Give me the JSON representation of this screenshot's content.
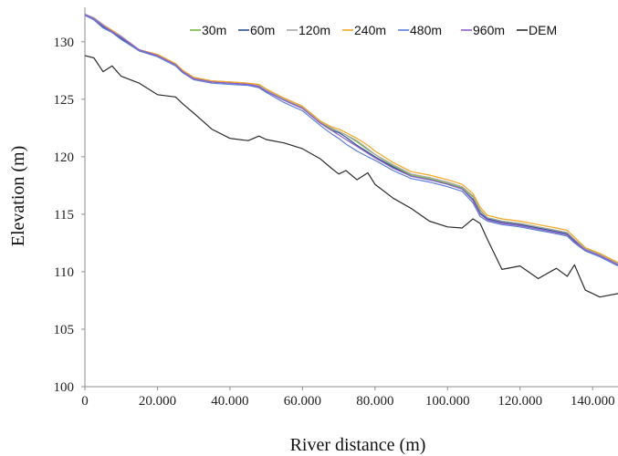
{
  "chart_data": {
    "type": "line",
    "title": "",
    "xlabel": "River distance (m)",
    "ylabel": "Elevation (m)",
    "xlim": [
      0,
      147000
    ],
    "ylim": [
      100,
      133
    ],
    "xticks": [
      0,
      20000,
      40000,
      60000,
      80000,
      100000,
      120000,
      140000
    ],
    "xtick_labels": [
      "0",
      "20.000",
      "40.000",
      "60.000",
      "80.000",
      "100.000",
      "120.000",
      "140.000"
    ],
    "yticks": [
      100,
      105,
      110,
      115,
      120,
      125,
      130
    ],
    "ytick_labels": [
      "100",
      "105",
      "110",
      "115",
      "120",
      "125",
      "130"
    ],
    "grid": false,
    "legend_position": "top-right",
    "x": [
      0,
      2500,
      5000,
      7500,
      10000,
      15000,
      20000,
      25000,
      27000,
      30000,
      35000,
      40000,
      45000,
      48000,
      50000,
      55000,
      60000,
      65000,
      68000,
      70000,
      72000,
      75000,
      78000,
      80000,
      85000,
      90000,
      95000,
      100000,
      104000,
      107000,
      109000,
      111000,
      115000,
      120000,
      125000,
      130000,
      133000,
      135000,
      138000,
      142000,
      147000
    ],
    "series": [
      {
        "name": "30m",
        "color": "#7ab648",
        "values": [
          132.3,
          132.0,
          131.4,
          131.0,
          130.4,
          129.3,
          128.8,
          128.1,
          127.5,
          126.9,
          126.6,
          126.5,
          126.4,
          126.2,
          125.8,
          125.0,
          124.3,
          123.0,
          122.4,
          122.2,
          121.9,
          121.3,
          120.6,
          120.2,
          119.2,
          118.4,
          118.1,
          117.7,
          117.3,
          116.5,
          115.3,
          114.7,
          114.4,
          114.2,
          113.9,
          113.6,
          113.4,
          112.8,
          112.0,
          111.5,
          110.7
        ]
      },
      {
        "name": "60m",
        "color": "#2f4f8f",
        "values": [
          132.3,
          132.0,
          131.3,
          130.9,
          130.3,
          129.2,
          128.8,
          128.0,
          127.4,
          126.8,
          126.5,
          126.4,
          126.3,
          126.1,
          125.7,
          124.9,
          124.2,
          122.9,
          122.3,
          122.1,
          121.7,
          121.0,
          120.4,
          120.0,
          119.1,
          118.3,
          118.0,
          117.6,
          117.2,
          116.3,
          115.1,
          114.6,
          114.3,
          114.1,
          113.8,
          113.5,
          113.3,
          112.7,
          111.9,
          111.4,
          110.6
        ]
      },
      {
        "name": "120m",
        "color": "#a6a6a6",
        "values": [
          132.4,
          132.1,
          131.5,
          131.0,
          130.5,
          129.3,
          128.9,
          128.1,
          127.5,
          126.9,
          126.6,
          126.5,
          126.4,
          126.2,
          125.8,
          125.0,
          124.3,
          123.0,
          122.5,
          122.2,
          121.9,
          121.4,
          120.7,
          120.2,
          119.3,
          118.5,
          118.2,
          117.8,
          117.4,
          116.6,
          115.4,
          114.7,
          114.4,
          114.2,
          113.9,
          113.6,
          113.4,
          112.8,
          112.0,
          111.5,
          110.7
        ]
      },
      {
        "name": "240m",
        "color": "#f5a623",
        "values": [
          132.3,
          132.0,
          131.4,
          131.0,
          130.4,
          129.3,
          128.9,
          128.1,
          127.5,
          126.9,
          126.6,
          126.5,
          126.4,
          126.3,
          125.9,
          125.1,
          124.4,
          123.1,
          122.6,
          122.4,
          122.1,
          121.6,
          121.0,
          120.5,
          119.5,
          118.7,
          118.4,
          118.0,
          117.6,
          116.8,
          115.6,
          114.9,
          114.6,
          114.4,
          114.1,
          113.8,
          113.6,
          113.0,
          112.1,
          111.6,
          110.8
        ]
      },
      {
        "name": "480m",
        "color": "#5b7fd6",
        "values": [
          132.3,
          131.9,
          131.2,
          130.8,
          130.2,
          129.2,
          128.7,
          127.9,
          127.3,
          126.7,
          126.4,
          126.3,
          126.2,
          126.0,
          125.6,
          124.7,
          124.0,
          122.7,
          122.0,
          121.6,
          121.1,
          120.5,
          120.0,
          119.7,
          118.8,
          118.1,
          117.8,
          117.4,
          117.0,
          116.0,
          114.8,
          114.4,
          114.1,
          113.9,
          113.6,
          113.3,
          113.1,
          112.5,
          111.8,
          111.3,
          110.5
        ]
      },
      {
        "name": "960m",
        "color": "#8e5fc9",
        "values": [
          132.4,
          132.0,
          131.4,
          130.9,
          130.4,
          129.3,
          128.8,
          128.0,
          127.4,
          126.8,
          126.5,
          126.4,
          126.3,
          126.1,
          125.7,
          124.9,
          124.2,
          122.9,
          122.3,
          121.9,
          121.5,
          120.9,
          120.3,
          119.9,
          119.0,
          118.3,
          118.0,
          117.6,
          117.2,
          116.2,
          115.0,
          114.5,
          114.2,
          114.0,
          113.7,
          113.4,
          113.2,
          112.6,
          111.9,
          111.4,
          110.6
        ]
      },
      {
        "name": "DEM",
        "color": "#2b2b2b",
        "values": [
          128.8,
          128.6,
          127.4,
          127.9,
          127.0,
          126.4,
          125.4,
          125.2,
          124.6,
          123.8,
          122.4,
          121.6,
          121.4,
          121.8,
          121.5,
          121.2,
          120.7,
          119.8,
          119.0,
          118.5,
          118.8,
          118.0,
          118.6,
          117.6,
          116.4,
          115.5,
          114.4,
          113.9,
          113.8,
          114.6,
          114.2,
          112.8,
          110.2,
          110.5,
          109.4,
          110.3,
          109.6,
          110.6,
          108.4,
          107.8,
          108.1
        ]
      }
    ]
  }
}
